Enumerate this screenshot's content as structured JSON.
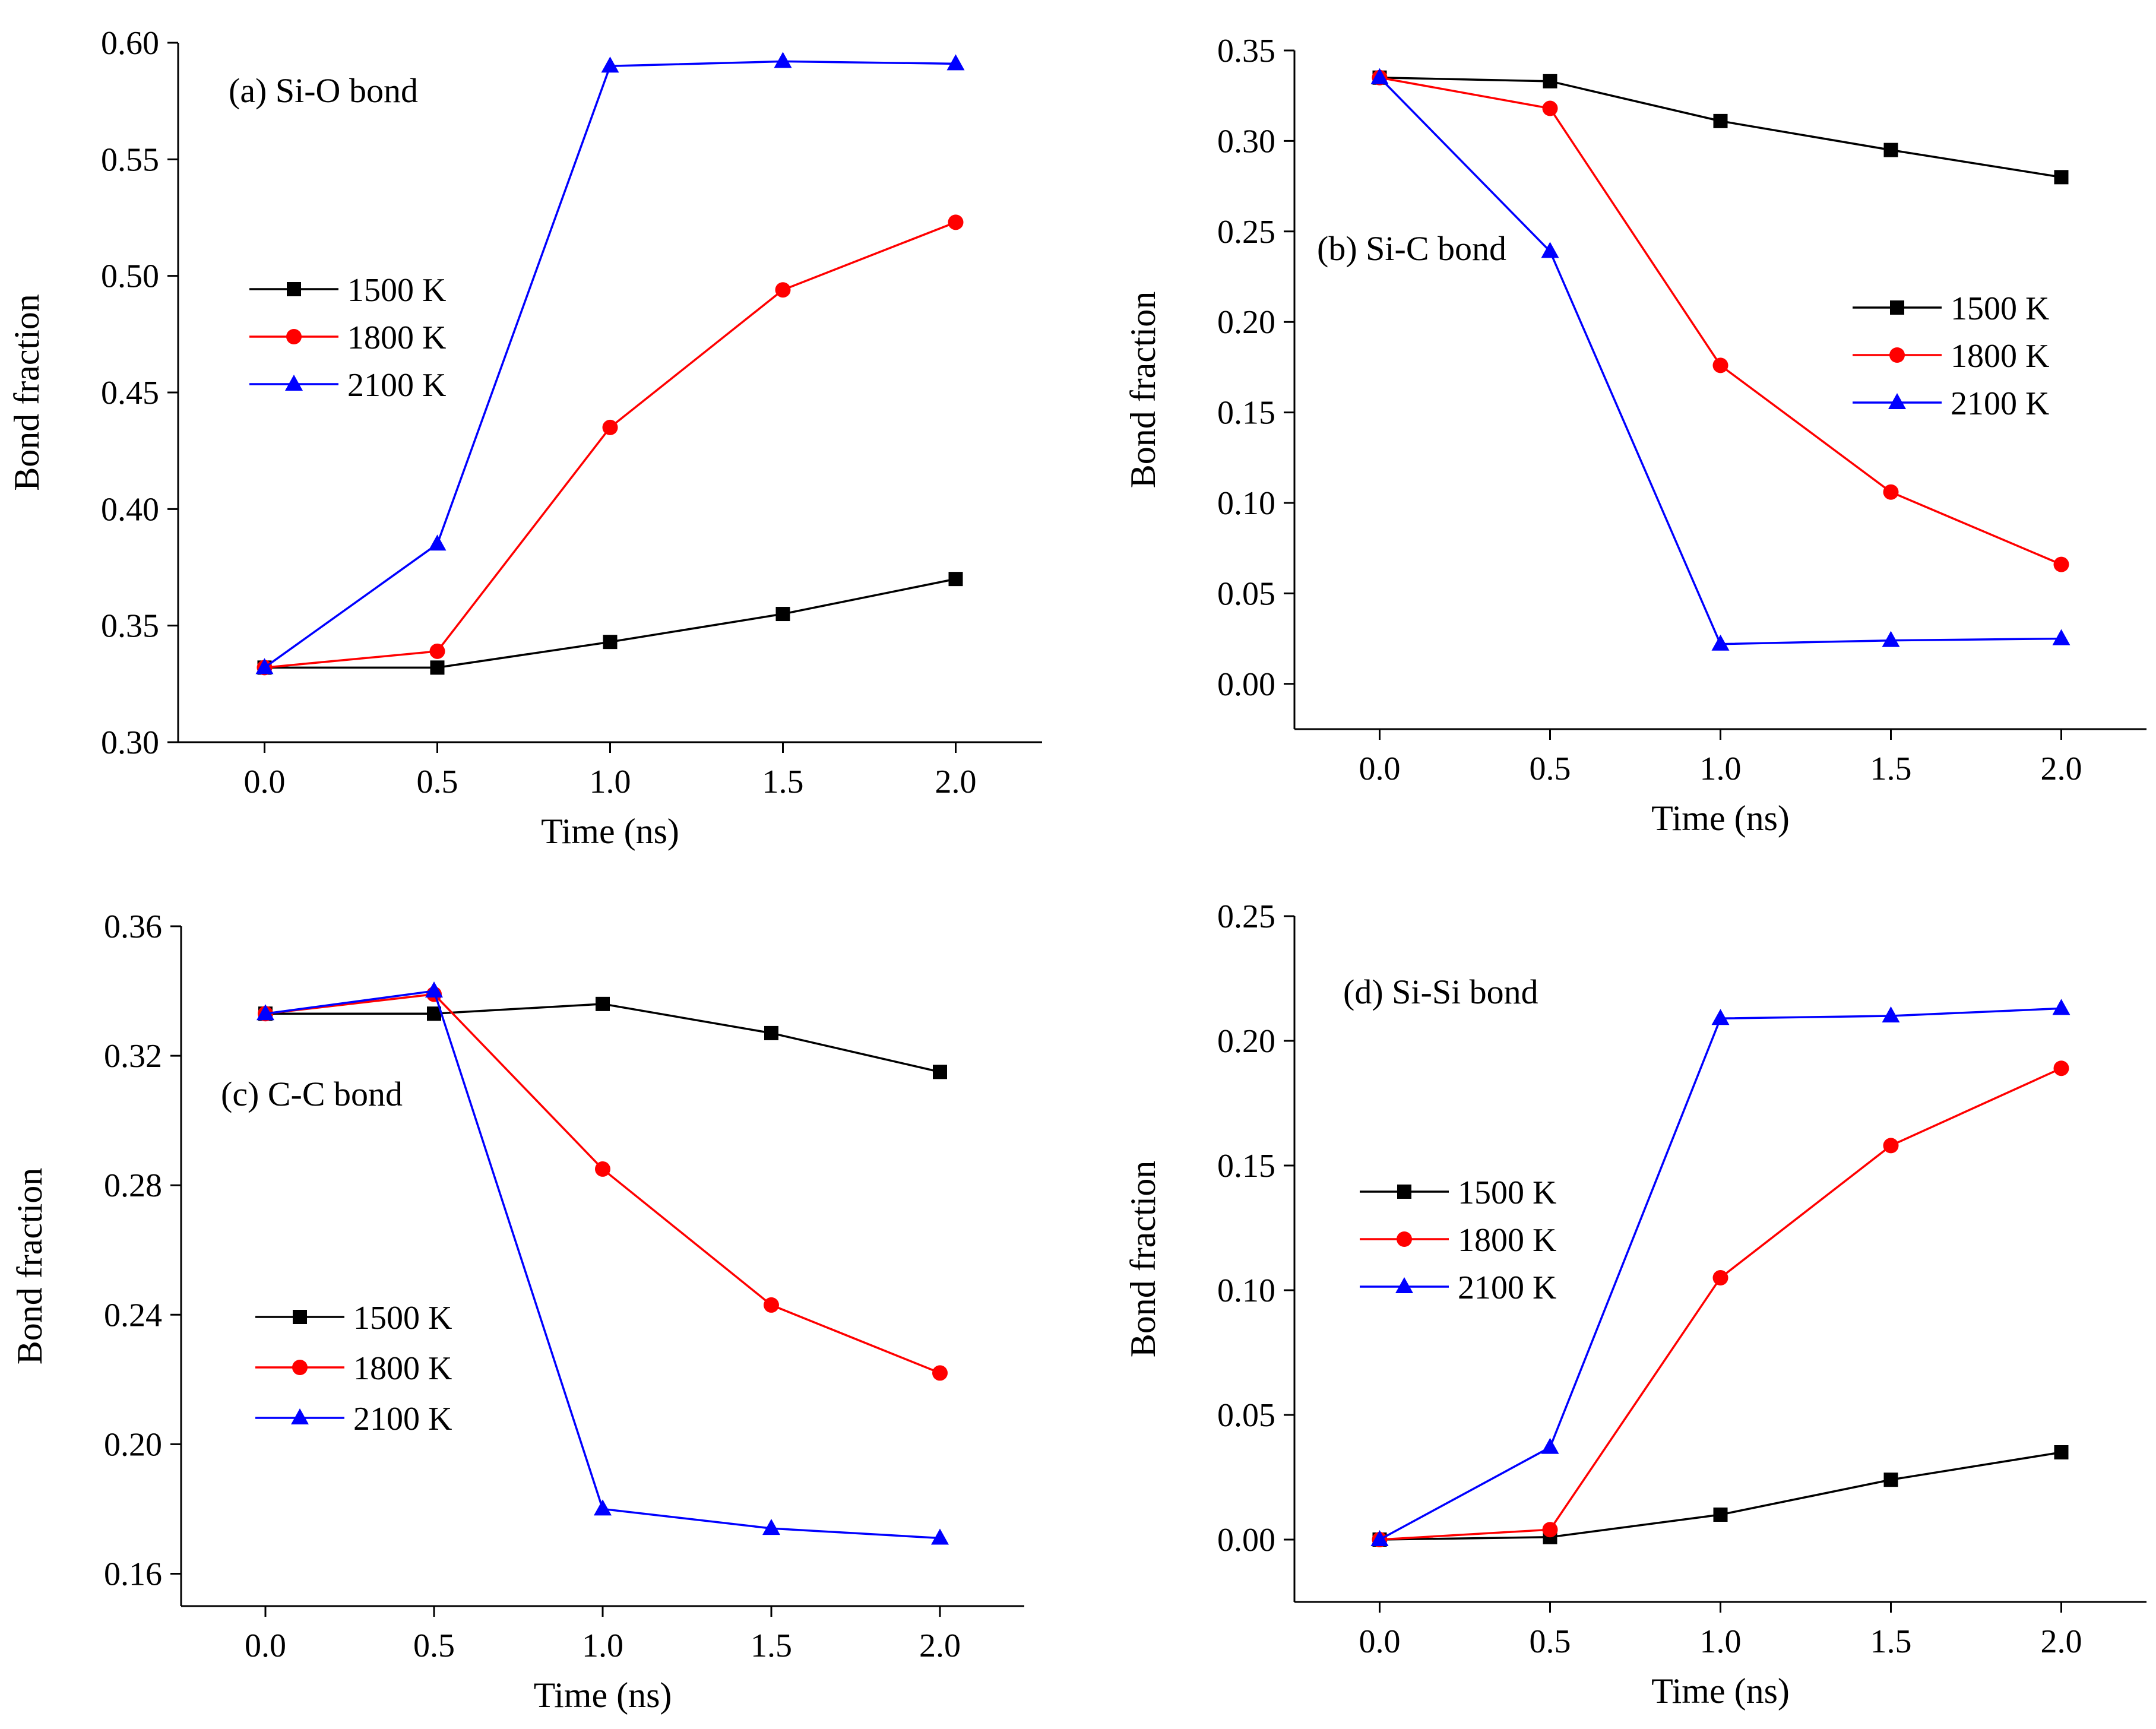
{
  "chart_data": [
    {
      "id": "a",
      "type": "line",
      "title": "(a) Si-O bond",
      "xlabel": "Time (ns)",
      "ylabel": "Bond fraction",
      "xlim": [
        -0.25,
        2.25
      ],
      "ylim": [
        0.3,
        0.6
      ],
      "xticks": [
        0.0,
        0.5,
        1.0,
        1.5,
        2.0
      ],
      "xtick_labels": [
        "0.0",
        "0.5",
        "1.0",
        "1.5",
        "2.0"
      ],
      "yticks": [
        0.3,
        0.35,
        0.4,
        0.45,
        0.5,
        0.55,
        0.6
      ],
      "ytick_labels": [
        "0.30",
        "0.35",
        "0.40",
        "0.45",
        "0.50",
        "0.55",
        "0.60"
      ],
      "legend_position": "center-left",
      "x": [
        0.0,
        0.5,
        1.0,
        1.5,
        2.0
      ],
      "series": [
        {
          "name": "1500 K",
          "color": "#000000",
          "marker": "square",
          "values": [
            0.332,
            0.332,
            0.343,
            0.355,
            0.37
          ]
        },
        {
          "name": "1800 K",
          "color": "#ff0000",
          "marker": "circle",
          "values": [
            0.332,
            0.339,
            0.435,
            0.494,
            0.523
          ]
        },
        {
          "name": "2100 K",
          "color": "#0000ff",
          "marker": "triangle",
          "values": [
            0.332,
            0.385,
            0.59,
            0.592,
            0.591
          ]
        }
      ]
    },
    {
      "id": "b",
      "type": "line",
      "title": "(b) Si-C bond",
      "xlabel": "Time (ns)",
      "ylabel": "Bond fraction",
      "xlim": [
        -0.25,
        2.25
      ],
      "ylim": [
        -0.025,
        0.35
      ],
      "xticks": [
        0.0,
        0.5,
        1.0,
        1.5,
        2.0
      ],
      "xtick_labels": [
        "0.0",
        "0.5",
        "1.0",
        "1.5",
        "2.0"
      ],
      "yticks": [
        0.0,
        0.05,
        0.1,
        0.15,
        0.2,
        0.25,
        0.3,
        0.35
      ],
      "ytick_labels": [
        "0.00",
        "0.05",
        "0.10",
        "0.15",
        "0.20",
        "0.25",
        "0.30",
        "0.35"
      ],
      "legend_position": "right",
      "x": [
        0.0,
        0.5,
        1.0,
        1.5,
        2.0
      ],
      "series": [
        {
          "name": "1500 K",
          "color": "#000000",
          "marker": "square",
          "values": [
            0.335,
            0.333,
            0.311,
            0.295,
            0.28
          ]
        },
        {
          "name": "1800 K",
          "color": "#ff0000",
          "marker": "circle",
          "values": [
            0.335,
            0.318,
            0.176,
            0.106,
            0.066
          ]
        },
        {
          "name": "2100 K",
          "color": "#0000ff",
          "marker": "triangle",
          "values": [
            0.335,
            0.239,
            0.022,
            0.024,
            0.025
          ]
        }
      ]
    },
    {
      "id": "c",
      "type": "line",
      "title": "(c) C-C bond",
      "xlabel": "Time (ns)",
      "ylabel": "Bond fraction",
      "xlim": [
        -0.25,
        2.25
      ],
      "ylim": [
        0.15,
        0.36
      ],
      "xticks": [
        0.0,
        0.5,
        1.0,
        1.5,
        2.0
      ],
      "xtick_labels": [
        "0.0",
        "0.5",
        "1.0",
        "1.5",
        "2.0"
      ],
      "yticks": [
        0.16,
        0.2,
        0.24,
        0.28,
        0.32,
        0.36
      ],
      "ytick_labels": [
        "0.16",
        "0.20",
        "0.24",
        "0.28",
        "0.32",
        "0.36"
      ],
      "legend_position": "lower-left",
      "x": [
        0.0,
        0.5,
        1.0,
        1.5,
        2.0
      ],
      "series": [
        {
          "name": "1500 K",
          "color": "#000000",
          "marker": "square",
          "values": [
            0.333,
            0.333,
            0.336,
            0.327,
            0.315
          ]
        },
        {
          "name": "1800 K",
          "color": "#ff0000",
          "marker": "circle",
          "values": [
            0.333,
            0.339,
            0.285,
            0.243,
            0.222
          ]
        },
        {
          "name": "2100 K",
          "color": "#0000ff",
          "marker": "triangle",
          "values": [
            0.333,
            0.34,
            0.18,
            0.174,
            0.171
          ]
        }
      ]
    },
    {
      "id": "d",
      "type": "line",
      "title": "(d) Si-Si bond",
      "xlabel": "Time (ns)",
      "ylabel": "Bond fraction",
      "xlim": [
        -0.25,
        2.25
      ],
      "ylim": [
        -0.025,
        0.25
      ],
      "xticks": [
        0.0,
        0.5,
        1.0,
        1.5,
        2.0
      ],
      "xtick_labels": [
        "0.0",
        "0.5",
        "1.0",
        "1.5",
        "2.0"
      ],
      "yticks": [
        0.0,
        0.05,
        0.1,
        0.15,
        0.2,
        0.25
      ],
      "ytick_labels": [
        "0.00",
        "0.05",
        "0.10",
        "0.15",
        "0.20",
        "0.25"
      ],
      "legend_position": "center-left",
      "x": [
        0.0,
        0.5,
        1.0,
        1.5,
        2.0
      ],
      "series": [
        {
          "name": "1500 K",
          "color": "#000000",
          "marker": "square",
          "values": [
            0.0,
            0.001,
            0.01,
            0.024,
            0.035
          ]
        },
        {
          "name": "1800 K",
          "color": "#ff0000",
          "marker": "circle",
          "values": [
            0.0,
            0.004,
            0.105,
            0.158,
            0.189
          ]
        },
        {
          "name": "2100 K",
          "color": "#0000ff",
          "marker": "triangle",
          "values": [
            0.0,
            0.037,
            0.209,
            0.21,
            0.213
          ]
        }
      ]
    }
  ]
}
